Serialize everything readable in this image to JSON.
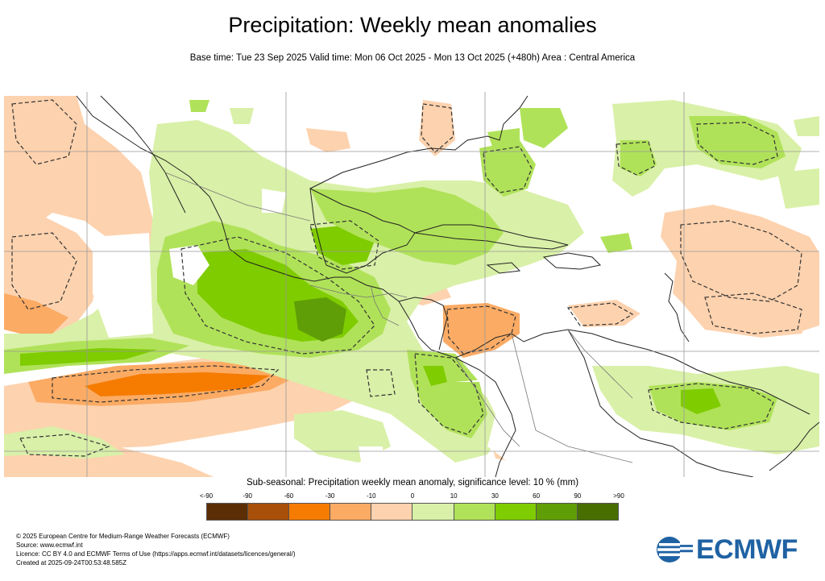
{
  "header": {
    "title": "Precipitation: Weekly mean anomalies",
    "subtitle": "Base time: Tue 23 Sep 2025 Valid time: Mon 06 Oct 2025 - Mon 13 Oct 2025 (+480h) Area : Central America"
  },
  "legend": {
    "title": "Sub-seasonal: Precipitation weekly mean anomaly, significance level: 10 % (mm)",
    "ticks": [
      "<-90",
      "-90",
      "-60",
      "-30",
      "-10",
      "0",
      "10",
      "30",
      "60",
      "90",
      ">90"
    ],
    "colors": [
      "#5c2e05",
      "#a8500a",
      "#f57c00",
      "#fbab64",
      "#fdd2ae",
      "#d9f0a8",
      "#b0e259",
      "#7fcc00",
      "#5f9e07",
      "#486e00"
    ]
  },
  "footer": {
    "copyright": "© 2025 European Centre for Medium-Range Weather Forecasts (ECMWF)",
    "source": "Source: www.ecmwf.int",
    "licence": "Licence: CC BY 4.0 and ECMWF Terms of Use (https://apps.ecmwf.int/datasets/licences/general/)",
    "created": "Created at 2025-09-24T00:53:48.585Z"
  },
  "logo": {
    "text": "ECMWF",
    "color": "#1f62a3"
  }
}
